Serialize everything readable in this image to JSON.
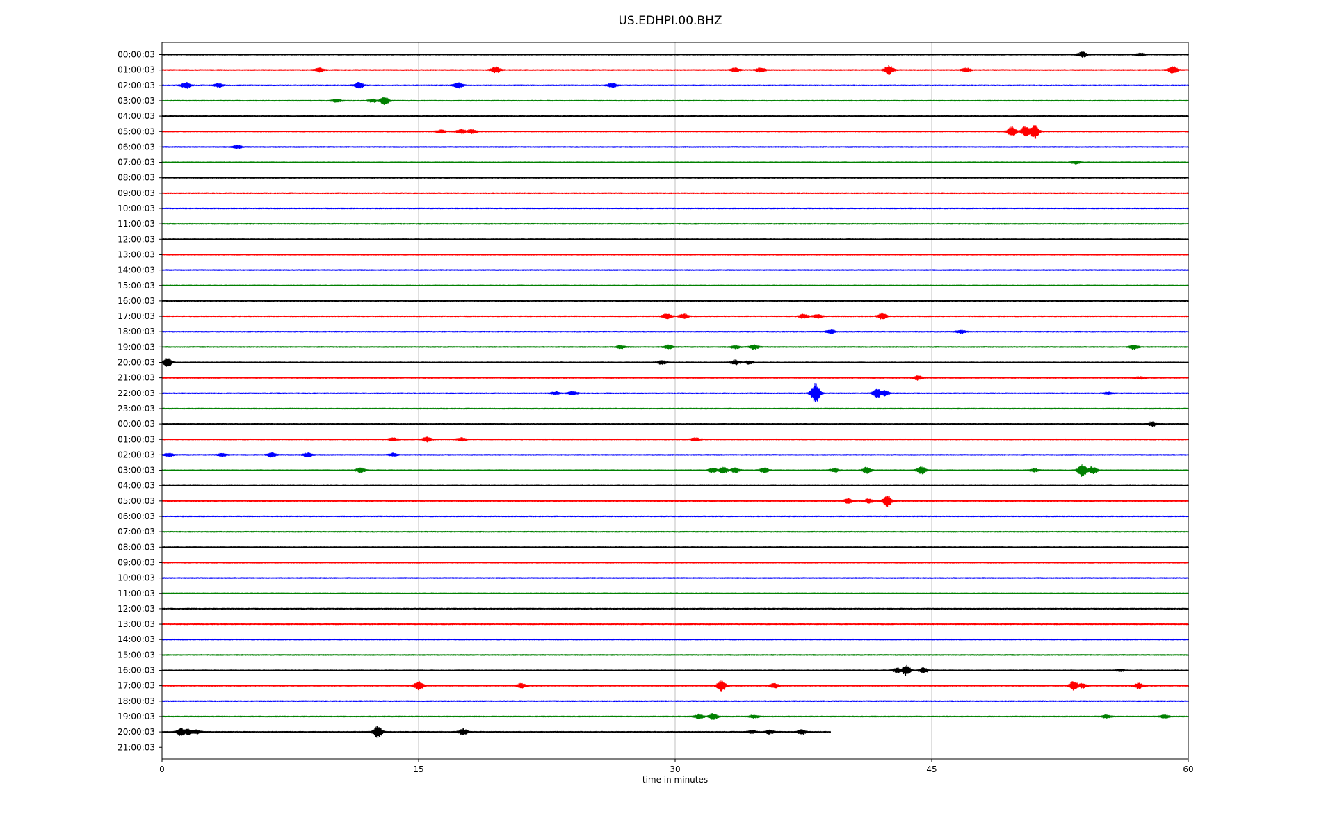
{
  "chart_data": {
    "type": "line",
    "title": "US.EDHPI.00.BHZ",
    "xlabel": "time in minutes",
    "ylabel": "",
    "xlim": [
      0,
      60
    ],
    "x_ticks": [
      0,
      15,
      30,
      45,
      60
    ],
    "grid": "vertical lines at 15, 30, 45",
    "line_colors": [
      "#000000",
      "#ff0000",
      "#0000ff",
      "#008000"
    ],
    "rows": [
      {
        "label": "00:00:03",
        "events": [
          [
            53.8,
            3.5
          ],
          [
            57.2,
            2
          ]
        ]
      },
      {
        "label": "01:00:03",
        "events": [
          [
            9.2,
            2.5
          ],
          [
            19.5,
            4
          ],
          [
            33.5,
            2.5
          ],
          [
            35,
            3
          ],
          [
            42.5,
            6
          ],
          [
            47,
            2.5
          ],
          [
            59.1,
            5
          ]
        ]
      },
      {
        "label": "02:00:03",
        "events": [
          [
            1.4,
            4
          ],
          [
            3.3,
            2.5
          ],
          [
            11.5,
            4
          ],
          [
            17.3,
            4
          ],
          [
            26.3,
            3
          ]
        ]
      },
      {
        "label": "03:00:03",
        "events": [
          [
            10.2,
            2
          ],
          [
            12.3,
            2
          ],
          [
            13,
            5
          ]
        ]
      },
      {
        "label": "04:00:03",
        "events": []
      },
      {
        "label": "05:00:03",
        "events": [
          [
            16.3,
            2
          ],
          [
            17.5,
            3
          ],
          [
            18.1,
            3
          ],
          [
            49.7,
            7
          ],
          [
            50.5,
            8
          ],
          [
            51,
            10
          ]
        ]
      },
      {
        "label": "06:00:03",
        "events": [
          [
            4.4,
            2
          ]
        ]
      },
      {
        "label": "07:00:03",
        "events": [
          [
            53.4,
            2
          ]
        ]
      },
      {
        "label": "08:00:03",
        "events": []
      },
      {
        "label": "09:00:03",
        "events": []
      },
      {
        "label": "10:00:03",
        "events": []
      },
      {
        "label": "11:00:03",
        "events": []
      },
      {
        "label": "12:00:03",
        "events": []
      },
      {
        "label": "13:00:03",
        "events": []
      },
      {
        "label": "14:00:03",
        "events": []
      },
      {
        "label": "15:00:03",
        "events": []
      },
      {
        "label": "16:00:03",
        "events": []
      },
      {
        "label": "17:00:03",
        "events": [
          [
            29.5,
            3.5
          ],
          [
            30.5,
            3
          ],
          [
            37.5,
            3
          ],
          [
            38.3,
            2.5
          ],
          [
            42.1,
            4
          ]
        ]
      },
      {
        "label": "18:00:03",
        "events": [
          [
            39.1,
            2.5
          ],
          [
            46.7,
            2
          ]
        ]
      },
      {
        "label": "19:00:03",
        "events": [
          [
            26.8,
            2
          ],
          [
            29.6,
            2.5
          ],
          [
            33.5,
            2
          ],
          [
            34.6,
            3
          ],
          [
            56.8,
            3
          ]
        ]
      },
      {
        "label": "20:00:03",
        "events": [
          [
            0.3,
            6
          ],
          [
            29.2,
            2.5
          ],
          [
            33.5,
            3
          ],
          [
            34.3,
            2
          ]
        ]
      },
      {
        "label": "21:00:03",
        "events": [
          [
            44.2,
            3
          ],
          [
            57.2,
            1.5
          ]
        ]
      },
      {
        "label": "22:00:03",
        "events": [
          [
            23,
            2
          ],
          [
            24,
            2.5
          ],
          [
            38.2,
            14
          ],
          [
            41.8,
            6
          ],
          [
            42.2,
            4
          ],
          [
            55.3,
            1.5
          ]
        ]
      },
      {
        "label": "23:00:03",
        "events": []
      },
      {
        "label": "00:00:03",
        "events": [
          [
            57.9,
            3
          ]
        ]
      },
      {
        "label": "01:00:03",
        "events": [
          [
            13.5,
            2
          ],
          [
            15.5,
            3
          ],
          [
            17.5,
            2
          ],
          [
            31.2,
            2
          ]
        ]
      },
      {
        "label": "02:00:03",
        "events": [
          [
            0.4,
            2
          ],
          [
            3.5,
            2
          ],
          [
            6.4,
            3
          ],
          [
            8.5,
            2.5
          ],
          [
            13.5,
            2
          ]
        ]
      },
      {
        "label": "03:00:03",
        "events": [
          [
            11.6,
            3
          ],
          [
            32.2,
            3
          ],
          [
            32.8,
            4
          ],
          [
            33.5,
            3
          ],
          [
            35.2,
            3
          ],
          [
            39.3,
            2.5
          ],
          [
            41.2,
            4
          ],
          [
            44.4,
            5
          ],
          [
            51,
            2
          ],
          [
            53.8,
            9
          ],
          [
            54.4,
            5
          ]
        ]
      },
      {
        "label": "04:00:03",
        "events": []
      },
      {
        "label": "05:00:03",
        "events": [
          [
            40.1,
            3
          ],
          [
            41.3,
            3
          ],
          [
            42.4,
            8
          ]
        ]
      },
      {
        "label": "06:00:03",
        "events": []
      },
      {
        "label": "07:00:03",
        "events": []
      },
      {
        "label": "08:00:03",
        "events": []
      },
      {
        "label": "09:00:03",
        "events": []
      },
      {
        "label": "10:00:03",
        "events": []
      },
      {
        "label": "11:00:03",
        "events": []
      },
      {
        "label": "12:00:03",
        "events": []
      },
      {
        "label": "13:00:03",
        "events": []
      },
      {
        "label": "14:00:03",
        "events": []
      },
      {
        "label": "15:00:03",
        "events": []
      },
      {
        "label": "16:00:03",
        "events": [
          [
            43,
            3
          ],
          [
            43.5,
            7
          ],
          [
            44.5,
            3.5
          ],
          [
            56,
            1.5
          ]
        ]
      },
      {
        "label": "17:00:03",
        "events": [
          [
            15,
            6
          ],
          [
            21,
            3
          ],
          [
            32.7,
            7
          ],
          [
            35.8,
            3
          ],
          [
            53.3,
            6
          ],
          [
            53.8,
            3
          ],
          [
            57.1,
            4
          ]
        ]
      },
      {
        "label": "18:00:03",
        "events": []
      },
      {
        "label": "19:00:03",
        "events": [
          [
            31.4,
            3
          ],
          [
            32.2,
            4
          ],
          [
            34.6,
            2
          ],
          [
            55.2,
            2
          ],
          [
            58.6,
            2
          ]
        ]
      },
      {
        "label": "20:00:03",
        "events": [
          [
            1.1,
            5
          ],
          [
            1.5,
            4
          ],
          [
            2,
            2.5
          ],
          [
            12.6,
            8
          ],
          [
            17.6,
            4
          ],
          [
            34.5,
            2
          ],
          [
            35.5,
            2.5
          ],
          [
            37.4,
            3
          ]
        ],
        "end": 39.1
      },
      {
        "label": "21:00:03",
        "events": [],
        "end": 0
      }
    ]
  }
}
